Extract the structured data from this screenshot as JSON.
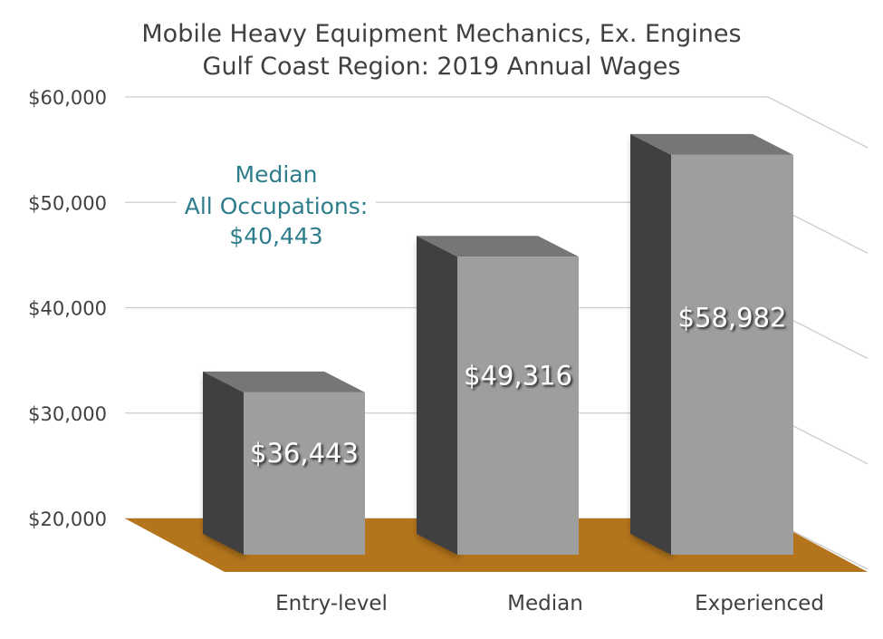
{
  "chart_data": {
    "type": "bar",
    "title": "Mobile Heavy Equipment Mechanics, Ex. Engines",
    "subtitle": "Gulf Coast Region: 2019 Annual Wages",
    "categories": [
      "Entry-level",
      "Median",
      "Experienced"
    ],
    "values": [
      36443,
      49316,
      58982
    ],
    "data_labels": [
      "$36,443",
      "$49,316",
      "$58,982"
    ],
    "y_ticks": [
      "$20,000",
      "$30,000",
      "$40,000",
      "$50,000",
      "$60,000"
    ],
    "y_tick_values": [
      20000,
      30000,
      40000,
      50000,
      60000
    ],
    "ylim": [
      20000,
      60000
    ],
    "xlabel": "",
    "ylabel": "",
    "grid": true,
    "style": "3d-column",
    "colors": {
      "bar_front": "#9e9e9e",
      "bar_side": "#404040",
      "bar_top": "#767676",
      "floor": "#b3741b",
      "grid": "#cccccc",
      "annotation": "#2e7d8c",
      "text": "#404040"
    },
    "annotation": [
      "Median",
      "All Occupations:",
      "$40,443"
    ]
  }
}
